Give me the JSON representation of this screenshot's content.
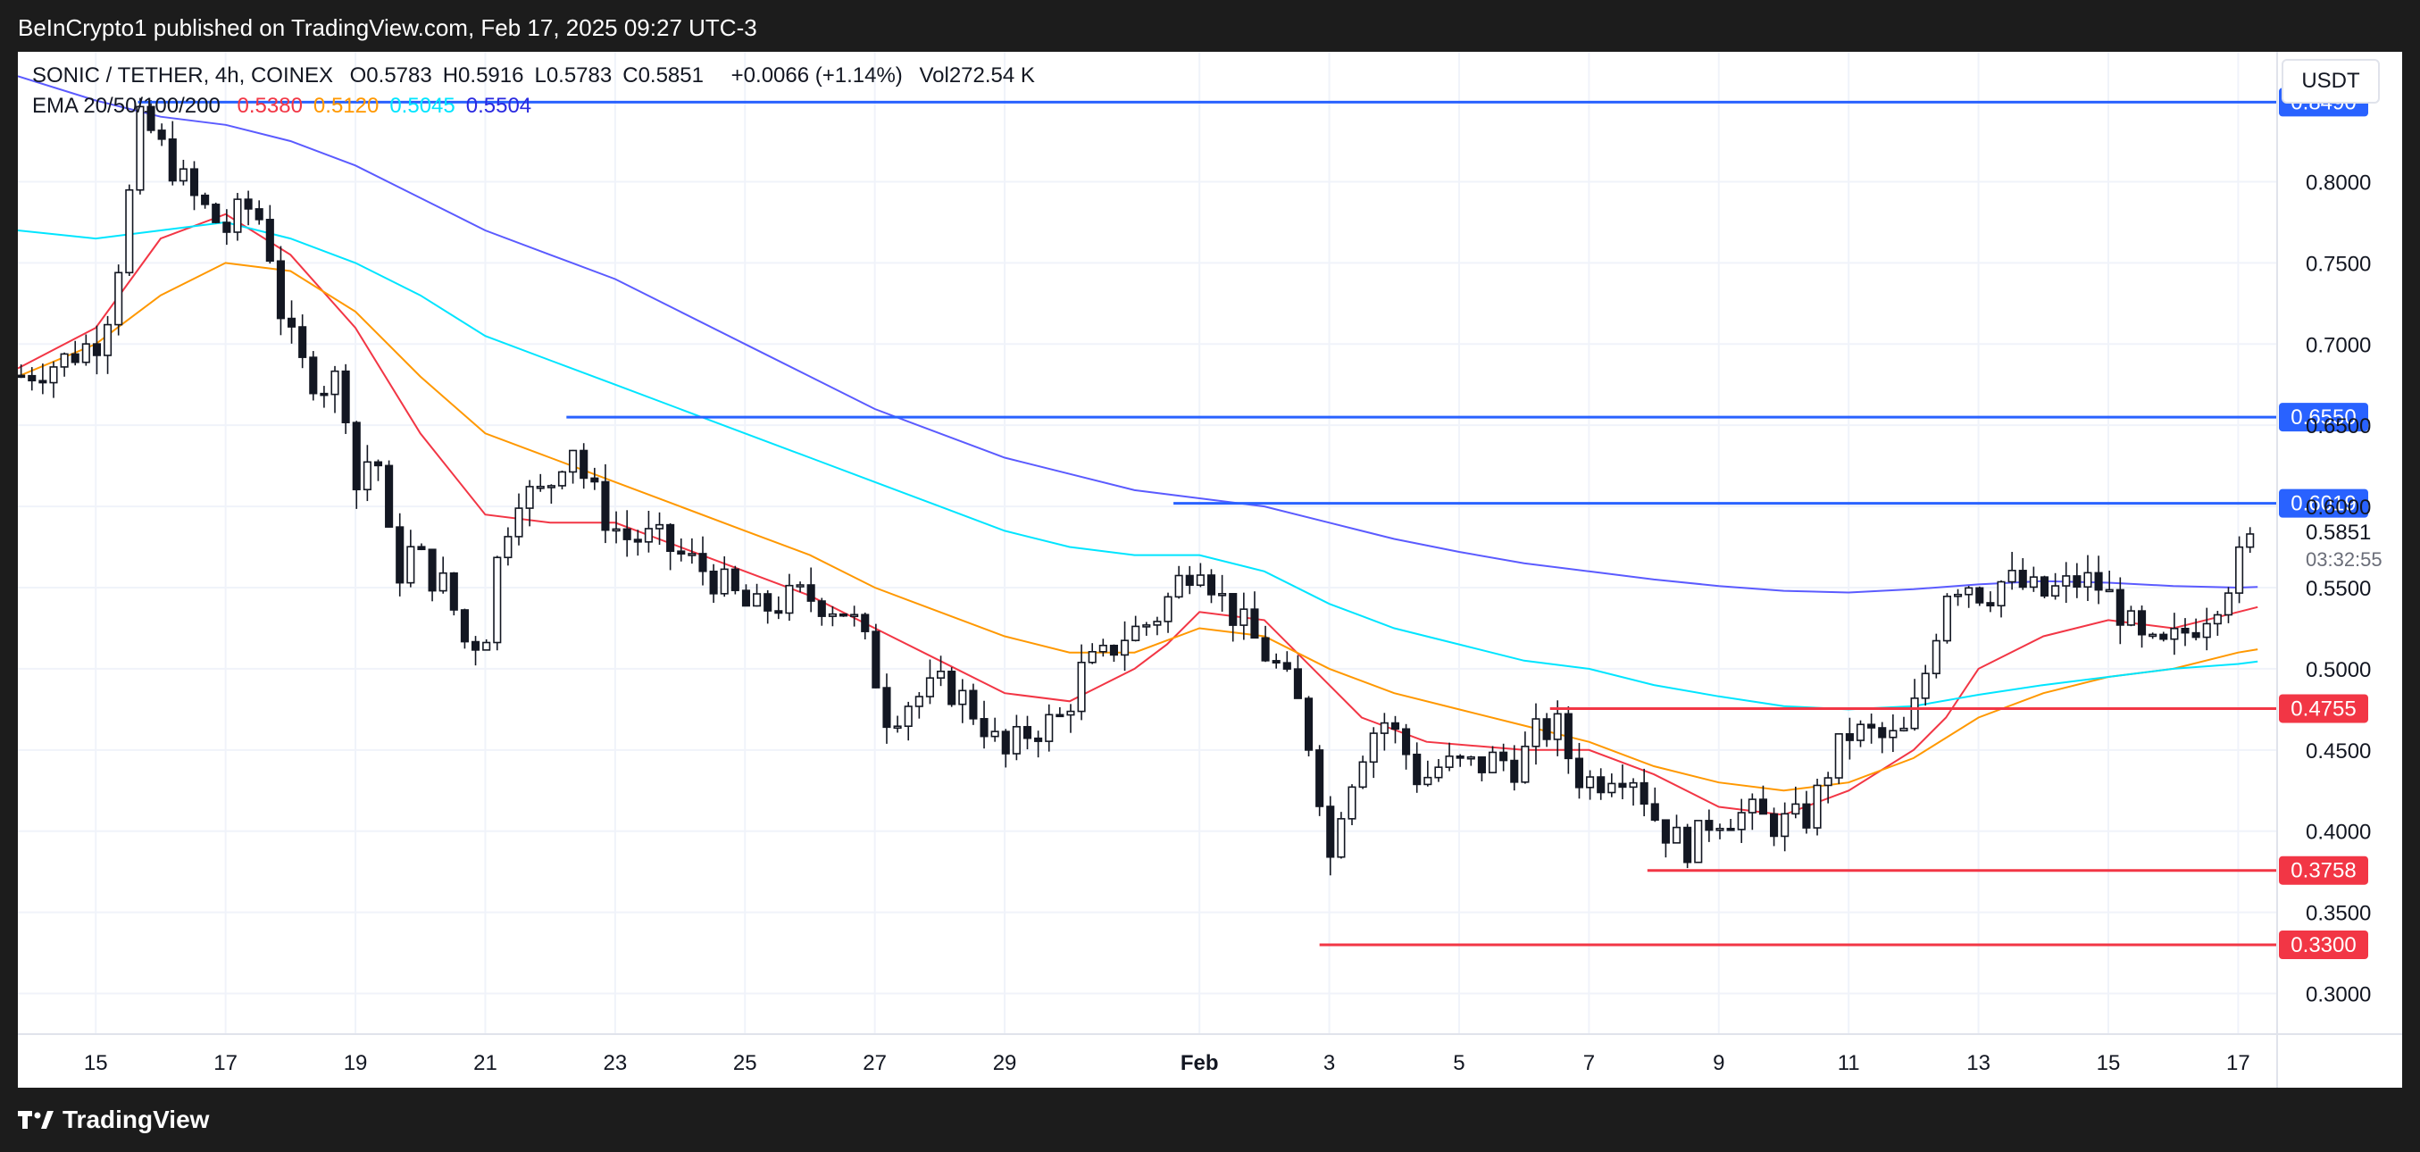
{
  "header": {
    "published_by": "BeInCrypto1 published on TradingView.com, Feb 17, 2025 09:27 UTC-3"
  },
  "legend": {
    "symbol": "SONIC / TETHER, 4h, COINEX",
    "ohlc": [
      {
        "label": "O",
        "value": "0.5783"
      },
      {
        "label": "H",
        "value": "0.5916"
      },
      {
        "label": "L",
        "value": "0.5783"
      },
      {
        "label": "C",
        "value": "0.5851"
      }
    ],
    "change": "+0.0066 (+1.14%)",
    "volume": "Vol272.54 K",
    "ema_label": "EMA 20/50/100/200",
    "ema_values": [
      {
        "value": "0.5380",
        "color": "#f23645"
      },
      {
        "value": "0.5120",
        "color": "#ff9800"
      },
      {
        "value": "0.5045",
        "color": "#00e5ff"
      },
      {
        "value": "0.5504",
        "color": "#2a2ae0"
      }
    ]
  },
  "currency_button": "USDT",
  "footer": {
    "brand": "TradingView"
  },
  "chart_data": {
    "type": "candlestick",
    "title": "SONIC / TETHER, 4h, COINEX",
    "ylim": [
      0.275,
      0.88
    ],
    "xlim": [
      -1.2,
      33.6
    ],
    "x_unit": "days since Jan 15, 2025",
    "y_ticks": [
      "0.8000",
      "0.7500",
      "0.7000",
      "0.6500",
      "0.6000",
      "0.5500",
      "0.5000",
      "0.4500",
      "0.4000",
      "0.3500",
      "0.3000"
    ],
    "x_ticks": [
      {
        "label": "15",
        "day": 0
      },
      {
        "label": "17",
        "day": 2
      },
      {
        "label": "19",
        "day": 4
      },
      {
        "label": "21",
        "day": 6
      },
      {
        "label": "23",
        "day": 8
      },
      {
        "label": "25",
        "day": 10
      },
      {
        "label": "27",
        "day": 12
      },
      {
        "label": "29",
        "day": 14
      },
      {
        "label": "Feb",
        "day": 17,
        "bold": true
      },
      {
        "label": "3",
        "day": 19
      },
      {
        "label": "5",
        "day": 21
      },
      {
        "label": "7",
        "day": 23
      },
      {
        "label": "9",
        "day": 25
      },
      {
        "label": "11",
        "day": 27
      },
      {
        "label": "13",
        "day": 29
      },
      {
        "label": "15",
        "day": 31
      },
      {
        "label": "17",
        "day": 33
      }
    ],
    "price_levels": [
      {
        "value": 0.849,
        "label": "0.8490",
        "color": "#2962ff",
        "from_day": 0.65
      },
      {
        "value": 0.655,
        "label": "0.6550",
        "color": "#2962ff",
        "from_day": 7.25
      },
      {
        "value": 0.6019,
        "label": "0.6019",
        "color": "#2962ff",
        "from_day": 16.6
      },
      {
        "value": 0.4755,
        "label": "0.4755",
        "color": "#f23645",
        "from_day": 22.4
      },
      {
        "value": 0.3758,
        "label": "0.3758",
        "color": "#f23645",
        "from_day": 23.9
      },
      {
        "value": 0.33,
        "label": "0.3300",
        "color": "#f23645",
        "from_day": 18.85
      }
    ],
    "current_price": {
      "value": 0.5851,
      "label": "0.5851",
      "countdown": "03:32:55"
    },
    "close_path": [
      [
        -1.2,
        0.68
      ],
      [
        -0.5,
        0.69
      ],
      [
        0.1,
        0.705
      ],
      [
        0.4,
        0.76
      ],
      [
        0.7,
        0.84
      ],
      [
        1.1,
        0.815
      ],
      [
        1.5,
        0.79
      ],
      [
        2.0,
        0.77
      ],
      [
        2.3,
        0.785
      ],
      [
        2.6,
        0.775
      ],
      [
        2.9,
        0.71
      ],
      [
        3.2,
        0.685
      ],
      [
        3.5,
        0.675
      ],
      [
        3.8,
        0.68
      ],
      [
        4.0,
        0.61
      ],
      [
        4.3,
        0.64
      ],
      [
        4.6,
        0.555
      ],
      [
        4.9,
        0.575
      ],
      [
        5.1,
        0.56
      ],
      [
        5.4,
        0.55
      ],
      [
        5.7,
        0.515
      ],
      [
        6.0,
        0.52
      ],
      [
        6.2,
        0.57
      ],
      [
        6.5,
        0.61
      ],
      [
        6.8,
        0.605
      ],
      [
        7.1,
        0.62
      ],
      [
        7.3,
        0.645
      ],
      [
        7.5,
        0.62
      ],
      [
        7.9,
        0.59
      ],
      [
        8.2,
        0.58
      ],
      [
        8.6,
        0.58
      ],
      [
        9.0,
        0.57
      ],
      [
        9.4,
        0.56
      ],
      [
        9.7,
        0.55
      ],
      [
        10.1,
        0.535
      ],
      [
        10.5,
        0.54
      ],
      [
        10.9,
        0.545
      ],
      [
        11.3,
        0.54
      ],
      [
        11.6,
        0.535
      ],
      [
        11.9,
        0.51
      ],
      [
        12.2,
        0.47
      ],
      [
        12.5,
        0.48
      ],
      [
        12.8,
        0.485
      ],
      [
        13.1,
        0.49
      ],
      [
        13.4,
        0.48
      ],
      [
        13.7,
        0.465
      ],
      [
        14.0,
        0.445
      ],
      [
        14.3,
        0.46
      ],
      [
        14.6,
        0.465
      ],
      [
        14.9,
        0.47
      ],
      [
        15.2,
        0.5
      ],
      [
        15.5,
        0.505
      ],
      [
        15.8,
        0.52
      ],
      [
        16.1,
        0.525
      ],
      [
        16.4,
        0.535
      ],
      [
        16.7,
        0.555
      ],
      [
        17.0,
        0.57
      ],
      [
        17.3,
        0.545
      ],
      [
        17.6,
        0.53
      ],
      [
        17.9,
        0.515
      ],
      [
        18.2,
        0.5
      ],
      [
        18.5,
        0.48
      ],
      [
        18.8,
        0.44
      ],
      [
        19.0,
        0.38
      ],
      [
        19.2,
        0.42
      ],
      [
        19.5,
        0.45
      ],
      [
        19.8,
        0.47
      ],
      [
        20.1,
        0.455
      ],
      [
        20.4,
        0.43
      ],
      [
        20.7,
        0.44
      ],
      [
        21.0,
        0.44
      ],
      [
        21.3,
        0.44
      ],
      [
        21.6,
        0.445
      ],
      [
        21.9,
        0.44
      ],
      [
        22.2,
        0.46
      ],
      [
        22.5,
        0.465
      ],
      [
        22.8,
        0.435
      ],
      [
        23.1,
        0.43
      ],
      [
        23.4,
        0.44
      ],
      [
        23.7,
        0.435
      ],
      [
        24.0,
        0.41
      ],
      [
        24.3,
        0.395
      ],
      [
        24.6,
        0.39
      ],
      [
        24.9,
        0.41
      ],
      [
        25.2,
        0.41
      ],
      [
        25.5,
        0.41
      ],
      [
        25.8,
        0.405
      ],
      [
        26.1,
        0.405
      ],
      [
        26.4,
        0.41
      ],
      [
        26.7,
        0.44
      ],
      [
        27.0,
        0.46
      ],
      [
        27.3,
        0.46
      ],
      [
        27.6,
        0.455
      ],
      [
        27.9,
        0.46
      ],
      [
        28.2,
        0.5
      ],
      [
        28.5,
        0.55
      ],
      [
        28.8,
        0.555
      ],
      [
        29.1,
        0.545
      ],
      [
        29.4,
        0.555
      ],
      [
        29.7,
        0.55
      ],
      [
        30.0,
        0.545
      ],
      [
        30.3,
        0.55
      ],
      [
        30.6,
        0.555
      ],
      [
        30.9,
        0.55
      ],
      [
        31.2,
        0.535
      ],
      [
        31.5,
        0.515
      ],
      [
        31.8,
        0.51
      ],
      [
        32.1,
        0.52
      ],
      [
        32.4,
        0.53
      ],
      [
        32.7,
        0.545
      ],
      [
        33.0,
        0.565
      ],
      [
        33.3,
        0.585
      ]
    ],
    "ema_series": [
      {
        "name": "EMA 20",
        "color": "#f23645",
        "points": [
          [
            -1.2,
            0.685
          ],
          [
            0,
            0.71
          ],
          [
            1,
            0.765
          ],
          [
            2,
            0.78
          ],
          [
            3,
            0.755
          ],
          [
            4,
            0.71
          ],
          [
            5,
            0.645
          ],
          [
            6,
            0.595
          ],
          [
            7,
            0.59
          ],
          [
            8,
            0.59
          ],
          [
            9,
            0.575
          ],
          [
            10,
            0.56
          ],
          [
            11,
            0.545
          ],
          [
            12,
            0.525
          ],
          [
            13,
            0.505
          ],
          [
            14,
            0.485
          ],
          [
            15,
            0.48
          ],
          [
            15.5,
            0.49
          ],
          [
            16,
            0.5
          ],
          [
            16.5,
            0.515
          ],
          [
            17,
            0.535
          ],
          [
            18,
            0.53
          ],
          [
            18.5,
            0.51
          ],
          [
            19.5,
            0.47
          ],
          [
            20.5,
            0.455
          ],
          [
            22,
            0.45
          ],
          [
            23,
            0.45
          ],
          [
            24,
            0.435
          ],
          [
            25,
            0.415
          ],
          [
            26,
            0.41
          ],
          [
            27,
            0.425
          ],
          [
            28,
            0.45
          ],
          [
            28.5,
            0.47
          ],
          [
            29,
            0.5
          ],
          [
            30,
            0.52
          ],
          [
            31,
            0.53
          ],
          [
            32,
            0.525
          ],
          [
            33,
            0.535
          ],
          [
            33.3,
            0.538
          ]
        ]
      },
      {
        "name": "EMA 50",
        "color": "#ff9800",
        "points": [
          [
            -1.2,
            0.68
          ],
          [
            0,
            0.7
          ],
          [
            1,
            0.73
          ],
          [
            2,
            0.75
          ],
          [
            3,
            0.745
          ],
          [
            4,
            0.72
          ],
          [
            5,
            0.68
          ],
          [
            6,
            0.645
          ],
          [
            7,
            0.63
          ],
          [
            8,
            0.615
          ],
          [
            9,
            0.6
          ],
          [
            10,
            0.585
          ],
          [
            11,
            0.57
          ],
          [
            12,
            0.55
          ],
          [
            13,
            0.535
          ],
          [
            14,
            0.52
          ],
          [
            15,
            0.51
          ],
          [
            16,
            0.51
          ],
          [
            17,
            0.525
          ],
          [
            18,
            0.52
          ],
          [
            19,
            0.5
          ],
          [
            20,
            0.485
          ],
          [
            21,
            0.475
          ],
          [
            22,
            0.465
          ],
          [
            23,
            0.455
          ],
          [
            24,
            0.44
          ],
          [
            25,
            0.43
          ],
          [
            26,
            0.425
          ],
          [
            27,
            0.43
          ],
          [
            28,
            0.445
          ],
          [
            29,
            0.47
          ],
          [
            30,
            0.485
          ],
          [
            31,
            0.495
          ],
          [
            32,
            0.5
          ],
          [
            33,
            0.51
          ],
          [
            33.3,
            0.512
          ]
        ]
      },
      {
        "name": "EMA 100",
        "color": "#00e5ff",
        "points": [
          [
            -1.2,
            0.77
          ],
          [
            0,
            0.765
          ],
          [
            1,
            0.77
          ],
          [
            2,
            0.775
          ],
          [
            3,
            0.765
          ],
          [
            4,
            0.75
          ],
          [
            5,
            0.73
          ],
          [
            6,
            0.705
          ],
          [
            7,
            0.69
          ],
          [
            8,
            0.675
          ],
          [
            9,
            0.66
          ],
          [
            10,
            0.645
          ],
          [
            11,
            0.63
          ],
          [
            12,
            0.615
          ],
          [
            13,
            0.6
          ],
          [
            14,
            0.585
          ],
          [
            15,
            0.575
          ],
          [
            16,
            0.57
          ],
          [
            17,
            0.57
          ],
          [
            18,
            0.56
          ],
          [
            19,
            0.54
          ],
          [
            20,
            0.525
          ],
          [
            21,
            0.515
          ],
          [
            22,
            0.505
          ],
          [
            23,
            0.5
          ],
          [
            24,
            0.49
          ],
          [
            25,
            0.483
          ],
          [
            26,
            0.477
          ],
          [
            27,
            0.475
          ],
          [
            28,
            0.477
          ],
          [
            29,
            0.484
          ],
          [
            30,
            0.49
          ],
          [
            31,
            0.495
          ],
          [
            32,
            0.5
          ],
          [
            33,
            0.503
          ],
          [
            33.3,
            0.5045
          ]
        ]
      },
      {
        "name": "EMA 200",
        "color": "#5b5bff",
        "points": [
          [
            -1.2,
            0.865
          ],
          [
            0,
            0.85
          ],
          [
            1,
            0.84
          ],
          [
            2,
            0.835
          ],
          [
            3,
            0.825
          ],
          [
            4,
            0.81
          ],
          [
            5,
            0.79
          ],
          [
            6,
            0.77
          ],
          [
            7,
            0.755
          ],
          [
            8,
            0.74
          ],
          [
            9,
            0.72
          ],
          [
            10,
            0.7
          ],
          [
            11,
            0.68
          ],
          [
            12,
            0.66
          ],
          [
            13,
            0.645
          ],
          [
            14,
            0.63
          ],
          [
            15,
            0.62
          ],
          [
            16,
            0.61
          ],
          [
            17,
            0.605
          ],
          [
            18,
            0.6
          ],
          [
            19,
            0.59
          ],
          [
            20,
            0.58
          ],
          [
            21,
            0.572
          ],
          [
            22,
            0.565
          ],
          [
            23,
            0.56
          ],
          [
            24,
            0.555
          ],
          [
            25,
            0.551
          ],
          [
            26,
            0.548
          ],
          [
            27,
            0.547
          ],
          [
            28,
            0.549
          ],
          [
            29,
            0.552
          ],
          [
            30,
            0.554
          ],
          [
            31,
            0.553
          ],
          [
            32,
            0.551
          ],
          [
            33,
            0.55
          ],
          [
            33.3,
            0.5504
          ]
        ]
      }
    ]
  }
}
